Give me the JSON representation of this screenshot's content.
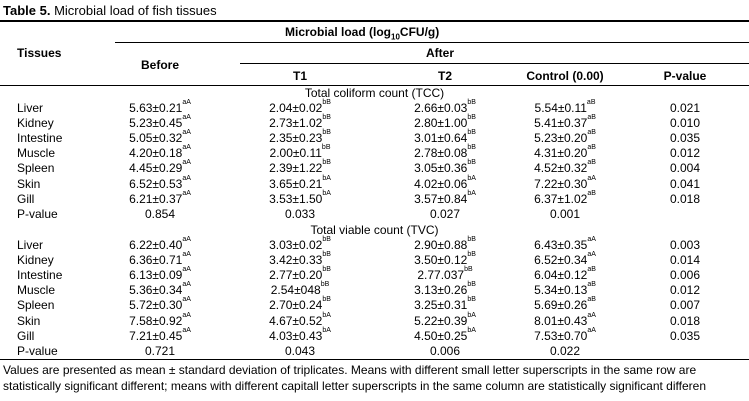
{
  "table": {
    "title_bold": "Table 5.",
    "title_rest": " Microbial load of fish tissues",
    "header": {
      "group_pre": "Microbial load (log",
      "group_sub": "10",
      "group_post": "CFU/g)",
      "tissues": "Tissues",
      "before": "Before",
      "after": "After",
      "t1": "T1",
      "t2": "T2",
      "control": "Control (0.00)",
      "pvalue": "P-value"
    },
    "sections": [
      {
        "title": "Total coliform count (TCC)",
        "rows": [
          {
            "tissue": "Liver",
            "before": "5.63±0.21",
            "before_sup": "aA",
            "t1": "2.04±0.02",
            "t1_sup": "bB",
            "t2": "2.66±0.03",
            "t2_sup": "bB",
            "control": "5.54±0.11",
            "control_sup": "aB",
            "p": "0.021"
          },
          {
            "tissue": "Kidney",
            "before": "5.23±0.45",
            "before_sup": "aA",
            "t1": "2.73±1.02",
            "t1_sup": "bB",
            "t2": "2.80±1.00",
            "t2_sup": "bB",
            "control": "5.41±0.37",
            "control_sup": "aB",
            "p": "0.010"
          },
          {
            "tissue": "Intestine",
            "before": "5.05±0.32",
            "before_sup": "aA",
            "t1": "2.35±0.23",
            "t1_sup": "bB",
            "t2": "3.01±0.64",
            "t2_sup": "bB",
            "control": "5.23±0.20",
            "control_sup": "aB",
            "p": "0.035"
          },
          {
            "tissue": "Muscle",
            "before": "4.20±0.18",
            "before_sup": "aA",
            "t1": "2.00±0.11",
            "t1_sup": "bB",
            "t2": "2.78±0.08",
            "t2_sup": "bB",
            "control": "4.31±0.20",
            "control_sup": "aB",
            "p": "0.012"
          },
          {
            "tissue": "Spleen",
            "before": "4.45±0.29",
            "before_sup": "aA",
            "t1": "2.39±1.22",
            "t1_sup": "bB",
            "t2": "3.05±0.36",
            "t2_sup": "bB",
            "control": "4.52±0.32",
            "control_sup": "aB",
            "p": "0.004"
          },
          {
            "tissue": "Skin",
            "before": "6.52±0.53",
            "before_sup": "aA",
            "t1": "3.65±0.21",
            "t1_sup": "bA",
            "t2": "4.02±0.06",
            "t2_sup": "bA",
            "control": "7.22±0.30",
            "control_sup": "aA",
            "p": "0.041"
          },
          {
            "tissue": "Gill",
            "before": "6.21±0.37",
            "before_sup": "aA",
            "t1": "3.53±1.50",
            "t1_sup": "bA",
            "t2": "3.57±0.84",
            "t2_sup": "bA",
            "control": "6.37±1.02",
            "control_sup": "aB",
            "p": "0.018"
          },
          {
            "tissue": "P-value",
            "before": "0.854",
            "before_sup": "",
            "t1": "0.033",
            "t1_sup": "",
            "t2": "0.027",
            "t2_sup": "",
            "control": "0.001",
            "control_sup": "",
            "p": ""
          }
        ]
      },
      {
        "title": "Total viable count (TVC)",
        "rows": [
          {
            "tissue": "Liver",
            "before": "6.22±0.40",
            "before_sup": "aA",
            "t1": "3.03±0.02",
            "t1_sup": "bB",
            "t2": "2.90±0.88",
            "t2_sup": "bB",
            "control": "6.43±0.35",
            "control_sup": "aA",
            "p": "0.003"
          },
          {
            "tissue": "Kidney",
            "before": "6.36±0.71",
            "before_sup": "aA",
            "t1": "3.42±0.33",
            "t1_sup": "bB",
            "t2": "3.50±0.12",
            "t2_sup": "bB",
            "control": "6.52±0.34",
            "control_sup": "aA",
            "p": "0.014"
          },
          {
            "tissue": "Intestine",
            "before": "6.13±0.09",
            "before_sup": "aA",
            "t1": "2.77±0.20",
            "t1_sup": "bB",
            "t2": "2.77.037",
            "t2_sup": "bB",
            "control": "6.04±0.12",
            "control_sup": "aB",
            "p": "0.006"
          },
          {
            "tissue": "Muscle",
            "before": "5.36±0.34",
            "before_sup": "aA",
            "t1": "2.54±048",
            "t1_sup": "bB",
            "t2": "3.13±0.26",
            "t2_sup": "bB",
            "control": "5.34±0.13",
            "control_sup": "aB",
            "p": "0.012"
          },
          {
            "tissue": "Spleen",
            "before": "5.72±0.30",
            "before_sup": "aA",
            "t1": "2.70±0.24",
            "t1_sup": "bB",
            "t2": "3.25±0.31",
            "t2_sup": "bB",
            "control": "5.69±0.26",
            "control_sup": "aB",
            "p": "0.007"
          },
          {
            "tissue": "Skin",
            "before": "7.58±0.92",
            "before_sup": "aA",
            "t1": "4.67±0.52",
            "t1_sup": "bA",
            "t2": "5.22±0.39",
            "t2_sup": "bA",
            "control": "8.01±0.43",
            "control_sup": "aA",
            "p": "0.018"
          },
          {
            "tissue": "Gill",
            "before": "7.21±0.45",
            "before_sup": "aA",
            "t1": "4.03±0.43",
            "t1_sup": "bA",
            "t2": "4.50±0.25",
            "t2_sup": "bA",
            "control": "7.53±0.70",
            "control_sup": "aA",
            "p": "0.035"
          },
          {
            "tissue": "P-value",
            "before": "0.721",
            "before_sup": "",
            "t1": "0.043",
            "t1_sup": "",
            "t2": "0.006",
            "t2_sup": "",
            "control": "0.022",
            "control_sup": "",
            "p": ""
          }
        ]
      }
    ],
    "footnote": "Values are presented as mean ± standard deviation of triplicates. Means with different small letter superscripts in the same row are statistically significant different; means with different capitall letter superscripts in the same column are statistically significant differen"
  }
}
